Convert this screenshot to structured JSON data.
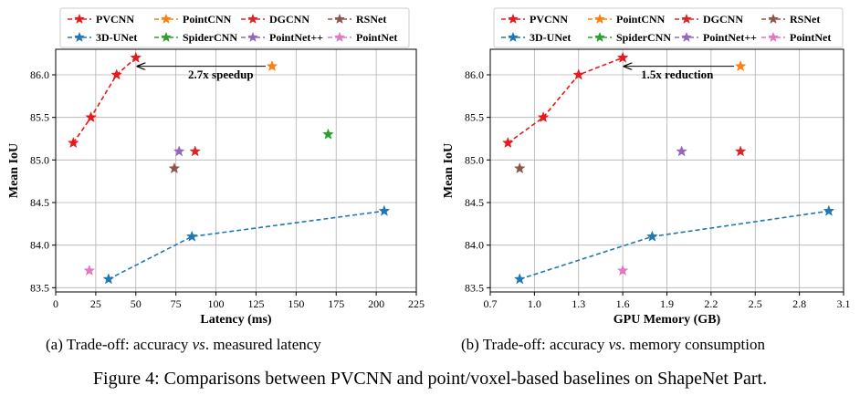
{
  "figure_caption": "Figure 4: Comparisons between PVCNN and point/voxel-based baselines on ShapeNet Part.",
  "colors": {
    "PVCNN": "#e8191d",
    "PointCNN": "#ff7f0e",
    "DGCNN": "#d62728",
    "RSNet": "#8c564b",
    "3D-UNet": "#1f77b4",
    "SpiderCNN": "#2ca02c",
    "PointNet++": "#9467bd",
    "PointNet": "#e377c2"
  },
  "chart_data": [
    {
      "type": "scatter",
      "subcaption_prefix": "(a) Trade-off: accuracy ",
      "subcaption_vs": "vs",
      "subcaption_suffix": ". measured latency",
      "xlabel": "Latency (ms)",
      "ylabel": "Mean IoU",
      "xlim": [
        0,
        225
      ],
      "ylim": [
        83.45,
        86.3
      ],
      "xticks": [
        0,
        25,
        50,
        75,
        100,
        125,
        150,
        175,
        200,
        225
      ],
      "xtick_labels": [
        "0",
        "25",
        "50",
        "75",
        "100",
        "125",
        "150",
        "175",
        "200",
        "225"
      ],
      "yticks": [
        83.5,
        84.0,
        84.5,
        85.0,
        85.5,
        86.0
      ],
      "ytick_labels": [
        "83.5",
        "84.0",
        "84.5",
        "85.0",
        "85.5",
        "86.0"
      ],
      "grid": true,
      "legend_placement": "top",
      "legend": [
        "PVCNN",
        "PointCNN",
        "DGCNN",
        "RSNet",
        "3D-UNet",
        "SpiderCNN",
        "PointNet++",
        "PointNet"
      ],
      "series": [
        {
          "name": "PVCNN",
          "dashed": true,
          "points": [
            [
              11,
              85.2
            ],
            [
              22,
              85.5
            ],
            [
              38,
              86.0
            ],
            [
              50,
              86.2
            ]
          ]
        },
        {
          "name": "PointCNN",
          "points": [
            [
              135,
              86.1
            ]
          ]
        },
        {
          "name": "DGCNN",
          "points": [
            [
              87,
              85.1
            ]
          ]
        },
        {
          "name": "RSNet",
          "points": [
            [
              74,
              84.9
            ]
          ]
        },
        {
          "name": "3D-UNet",
          "dashed": true,
          "points": [
            [
              33,
              83.6
            ],
            [
              85,
              84.1
            ],
            [
              205,
              84.4
            ]
          ]
        },
        {
          "name": "SpiderCNN",
          "points": [
            [
              170,
              85.3
            ]
          ]
        },
        {
          "name": "PointNet++",
          "points": [
            [
              77,
              85.1
            ]
          ]
        },
        {
          "name": "PointNet",
          "points": [
            [
              21,
              83.7
            ]
          ]
        }
      ],
      "annotation": {
        "text": "2.7x speedup",
        "from": [
          135,
          86.1
        ],
        "to": [
          51,
          86.1
        ],
        "text_at": [
          103,
          86.0
        ]
      }
    },
    {
      "type": "scatter",
      "subcaption_prefix": "(b) Trade-off: accuracy ",
      "subcaption_vs": "vs",
      "subcaption_suffix": ". memory consumption",
      "xlabel": "GPU Memory (GB)",
      "ylabel": "Mean IoU",
      "xlim": [
        0.7,
        3.1
      ],
      "ylim": [
        83.45,
        86.3
      ],
      "xticks": [
        0.7,
        1.0,
        1.3,
        1.6,
        1.9,
        2.2,
        2.5,
        2.8,
        3.1
      ],
      "xtick_labels": [
        "0.7",
        "1.0",
        "1.3",
        "1.6",
        "1.9",
        "2.2",
        "2.5",
        "2.8",
        "3.1"
      ],
      "yticks": [
        83.5,
        84.0,
        84.5,
        85.0,
        85.5,
        86.0
      ],
      "ytick_labels": [
        "83.5",
        "84.0",
        "84.5",
        "85.0",
        "85.5",
        "86.0"
      ],
      "grid": true,
      "legend_placement": "top",
      "legend": [
        "PVCNN",
        "PointCNN",
        "DGCNN",
        "RSNet",
        "3D-UNet",
        "SpiderCNN",
        "PointNet++",
        "PointNet"
      ],
      "series": [
        {
          "name": "PVCNN",
          "dashed": true,
          "points": [
            [
              0.82,
              85.2
            ],
            [
              1.06,
              85.5
            ],
            [
              1.3,
              86.0
            ],
            [
              1.6,
              86.2
            ]
          ]
        },
        {
          "name": "PointCNN",
          "points": [
            [
              2.4,
              86.1
            ]
          ]
        },
        {
          "name": "DGCNN",
          "points": [
            [
              2.4,
              85.1
            ]
          ]
        },
        {
          "name": "RSNet",
          "points": [
            [
              0.9,
              84.9
            ]
          ]
        },
        {
          "name": "3D-UNet",
          "dashed": true,
          "points": [
            [
              0.9,
              83.6
            ],
            [
              1.8,
              84.1
            ],
            [
              3.0,
              84.4
            ]
          ]
        },
        {
          "name": "PointNet++",
          "points": [
            [
              2.0,
              85.1
            ]
          ]
        },
        {
          "name": "PointNet",
          "points": [
            [
              1.6,
              83.7
            ]
          ]
        }
      ],
      "annotation": {
        "text": "1.5x reduction",
        "from": [
          2.4,
          86.1
        ],
        "to": [
          1.61,
          86.1
        ],
        "text_at": [
          1.97,
          86.0
        ]
      }
    }
  ]
}
